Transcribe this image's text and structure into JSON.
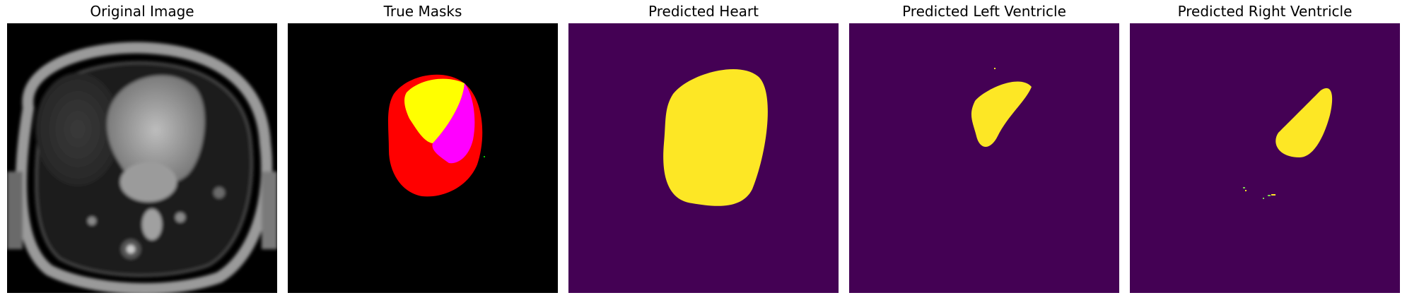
{
  "figure": {
    "panels": [
      {
        "title": "Original Image",
        "kind": "mri-scan",
        "background": "#000000"
      },
      {
        "title": "True Masks",
        "kind": "rgb-mask",
        "background": "#000000",
        "mask_colors": {
          "heart": "#ff0000",
          "left_ventricle": "#ffff00",
          "right_ventricle": "#ff00ff"
        }
      },
      {
        "title": "Predicted Heart",
        "kind": "binary-mask",
        "background": "#440154",
        "foreground": "#fde725"
      },
      {
        "title": "Predicted Left Ventricle",
        "kind": "binary-mask",
        "background": "#440154",
        "foreground": "#fde725"
      },
      {
        "title": "Predicted Right Ventricle",
        "kind": "binary-mask",
        "background": "#440154",
        "foreground": "#fde725"
      }
    ]
  }
}
